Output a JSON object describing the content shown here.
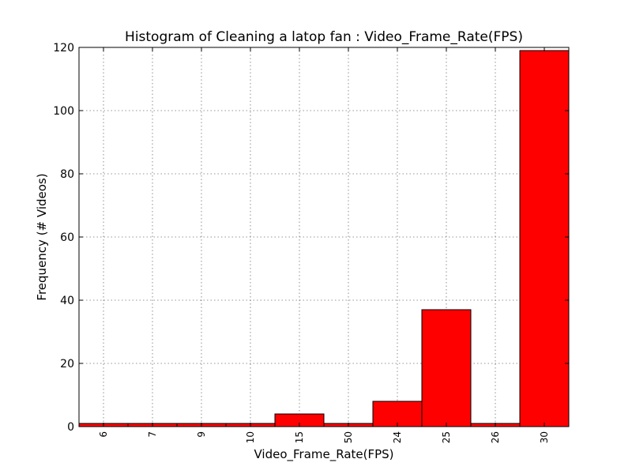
{
  "chart_data": {
    "type": "bar",
    "title": "Histogram of Cleaning a latop fan : Video_Frame_Rate(FPS)",
    "xlabel": "Video_Frame_Rate(FPS)",
    "ylabel": "Frequency (# Videos)",
    "categories": [
      "6",
      "7",
      "9",
      "10",
      "15",
      "50",
      "24",
      "25",
      "26",
      "30"
    ],
    "values": [
      1,
      1,
      1,
      1,
      4,
      1,
      8,
      37,
      1,
      119
    ],
    "ylim": [
      0,
      120
    ],
    "yticks": [
      0,
      20,
      40,
      60,
      80,
      100,
      120
    ],
    "grid": true,
    "bar_color": "#ff0000"
  }
}
